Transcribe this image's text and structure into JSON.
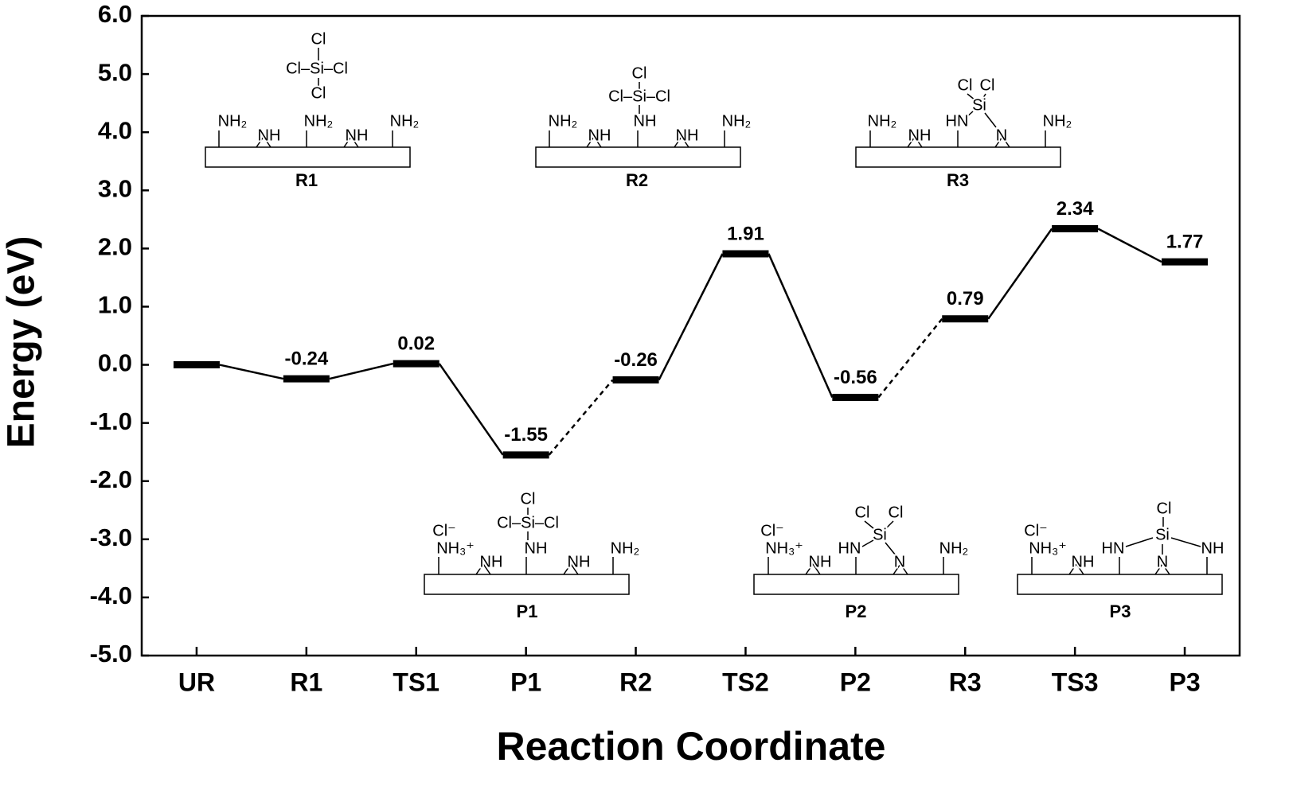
{
  "chart_data": {
    "type": "energy-levels",
    "x_label": "Reaction Coordinate",
    "y_label": "Energy (eV)",
    "categories": [
      "UR",
      "R1",
      "TS1",
      "P1",
      "R2",
      "TS2",
      "P2",
      "R3",
      "TS3",
      "P3"
    ],
    "values": [
      0,
      -0.24,
      0.02,
      -1.55,
      -0.26,
      1.91,
      -0.56,
      0.79,
      2.34,
      1.77
    ],
    "value_labels": [
      null,
      "-0.24",
      "0.02",
      "-1.55",
      "-0.26",
      "1.91",
      "-0.56",
      "0.79",
      "2.34",
      "1.77"
    ],
    "connector_styles": [
      "solid",
      "solid",
      "solid",
      "dashed",
      "solid",
      "solid",
      "dashed",
      "solid",
      "solid"
    ],
    "color": "#000000",
    "ylim": [
      -5,
      6
    ],
    "yticks": [
      {
        "value": 6,
        "label": "6.0"
      },
      {
        "value": 5,
        "label": "5.0"
      },
      {
        "value": 4,
        "label": "4.0"
      },
      {
        "value": 3,
        "label": "3.0"
      },
      {
        "value": 2,
        "label": "2.0"
      },
      {
        "value": 1,
        "label": "1.0"
      },
      {
        "value": 0,
        "label": "0.0"
      },
      {
        "value": -1,
        "label": "-1.0"
      },
      {
        "value": -2,
        "label": "-2.0"
      },
      {
        "value": -3,
        "label": "-3.0"
      },
      {
        "value": -4,
        "label": "-4.0"
      },
      {
        "value": -5,
        "label": "-5.0"
      }
    ]
  },
  "structures": [
    {
      "label": "R1",
      "texts": [
        "Cl",
        "Cl–Si–Cl",
        "Cl",
        "NH₂",
        "NH",
        "NH₂",
        "NH",
        "NH₂"
      ]
    },
    {
      "label": "R2",
      "texts": [
        "Cl",
        "Cl–Si–Cl",
        "NH",
        "NH₂",
        "NH",
        "NH",
        "NH₂"
      ]
    },
    {
      "label": "R3",
      "texts": [
        "Cl",
        "Cl",
        "Si",
        "HN",
        "N",
        "NH₂",
        "NH",
        "NH₂"
      ]
    },
    {
      "label": "P1",
      "texts": [
        "Cl⁻",
        "NH₃⁺",
        "Cl",
        "Cl–Si–Cl",
        "NH",
        "NH",
        "NH",
        "NH₂"
      ]
    },
    {
      "label": "P2",
      "texts": [
        "Cl⁻",
        "NH₃⁺",
        "Cl",
        "Cl",
        "Si",
        "HN",
        "N",
        "NH",
        "NH₂"
      ]
    },
    {
      "label": "P3",
      "texts": [
        "Cl⁻",
        "NH₃⁺",
        "Cl",
        "Si",
        "HN",
        "N",
        "NH",
        "NH"
      ]
    }
  ]
}
